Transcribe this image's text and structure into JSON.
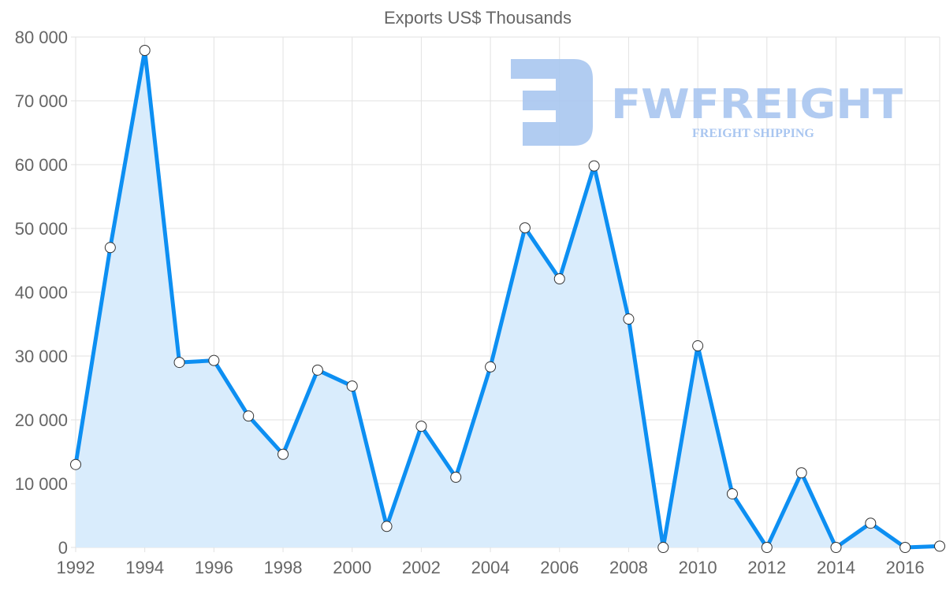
{
  "chart_data": {
    "type": "area",
    "title": "Exports US$ Thousands",
    "xlabel": "",
    "ylabel": "",
    "x": [
      1992,
      1993,
      1994,
      1995,
      1996,
      1997,
      1998,
      1999,
      2000,
      2001,
      2002,
      2003,
      2004,
      2005,
      2006,
      2007,
      2008,
      2009,
      2010,
      2011,
      2012,
      2013,
      2014,
      2015,
      2016,
      2017
    ],
    "series": [
      {
        "name": "Exports US$ Thousands",
        "values": [
          13000,
          47000,
          77900,
          29000,
          29300,
          20600,
          14600,
          27800,
          25300,
          3300,
          19000,
          11000,
          28300,
          50100,
          42100,
          59800,
          35800,
          0,
          31600,
          8400,
          0,
          11700,
          0,
          3800,
          0,
          200
        ]
      }
    ],
    "xlim": [
      1992,
      2017
    ],
    "ylim": [
      0,
      80000
    ],
    "x_tick_labels": [
      "1992",
      "1994",
      "1996",
      "1998",
      "2000",
      "2002",
      "2004",
      "2006",
      "2008",
      "2010",
      "2012",
      "2014",
      "2016"
    ],
    "y_tick_labels": [
      "0",
      "10 000",
      "20 000",
      "30 000",
      "40 000",
      "50 000",
      "60 000",
      "70 000",
      "80 000"
    ],
    "y_ticks": [
      0,
      10000,
      20000,
      30000,
      40000,
      50000,
      60000,
      70000,
      80000
    ],
    "grid": true,
    "colors": {
      "line": "#0d8ff2",
      "fill": "#d9ecfc",
      "point_fill": "#ffffff",
      "point_stroke": "#333333"
    }
  },
  "watermark": {
    "name": "FWFREIGHT",
    "tagline": "FREIGHT SHIPPING"
  }
}
